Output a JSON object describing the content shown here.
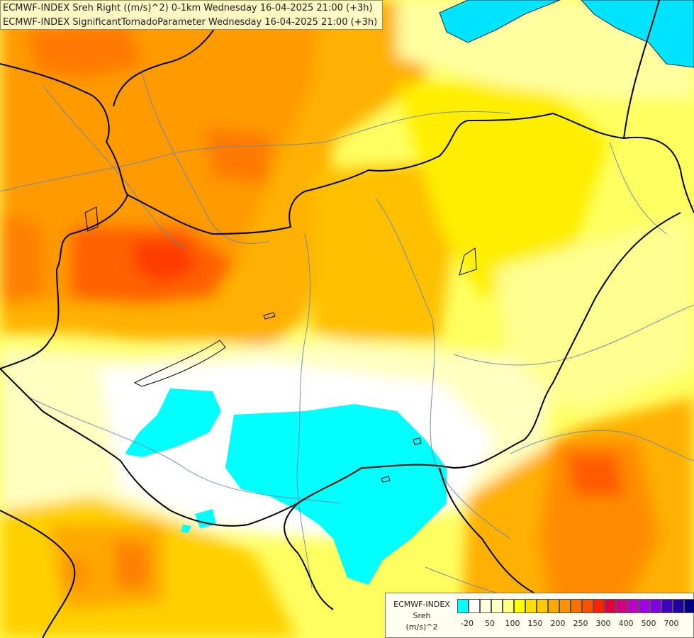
{
  "header": {
    "line1": "ECMWF-INDEX Sreh Right ((m/s)^2) 0-1km Wednesday 16-04-2025 21:00 (+3h)",
    "line2": "ECMWF-INDEX SignificantTornadoParameter Wednesday 16-04-2025 21:00 (+3h)"
  },
  "legend": {
    "line1": "ECMWF-INDEX",
    "line2": "Sreh",
    "line3": "(m/s)^2",
    "colors": [
      "#00ffff",
      "#ffffff",
      "#ffffe0",
      "#ffffc0",
      "#ffff80",
      "#ffff00",
      "#ffe000",
      "#ffc800",
      "#ffa800",
      "#ff9000",
      "#ff7000",
      "#ff5000",
      "#ff2000",
      "#e00040",
      "#d00080",
      "#c000c0",
      "#a000e0",
      "#8000e0",
      "#4000c0",
      "#2000a0",
      "#000080"
    ],
    "ticks": [
      "-20",
      "50",
      "100",
      "150",
      "200",
      "250",
      "300",
      "400",
      "500",
      "700"
    ]
  },
  "map": {
    "background_color": "#ffffc0",
    "water_color": "#00e8ff"
  }
}
